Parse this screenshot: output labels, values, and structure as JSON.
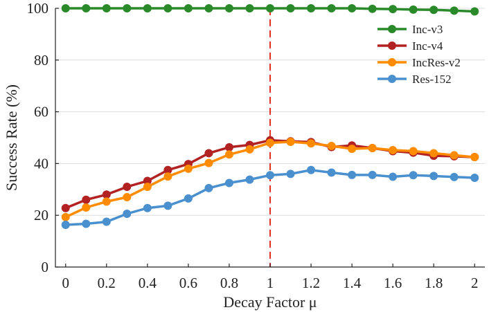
{
  "chart_data": {
    "type": "line",
    "title": "",
    "xlabel": "Decay Factor μ",
    "ylabel": "Success Rate (%)",
    "xlim": [
      -0.05,
      2.05
    ],
    "ylim": [
      0,
      100
    ],
    "xticks": [
      0,
      0.2,
      0.4,
      0.6,
      0.8,
      1,
      1.2,
      1.4,
      1.6,
      1.8,
      2
    ],
    "xtick_labels": [
      "0",
      "0.2",
      "0.4",
      "0.6",
      "0.8",
      "1",
      "1.2",
      "1.4",
      "1.6",
      "1.8",
      "2"
    ],
    "yticks": [
      0,
      20,
      40,
      60,
      80,
      100
    ],
    "ytick_labels": [
      "0",
      "20",
      "40",
      "60",
      "80",
      "100"
    ],
    "grid": "horizontal",
    "legend_position": "top-right",
    "reference_line": {
      "x": 1,
      "color": "#e8302a",
      "style": "dashed"
    },
    "x": [
      0,
      0.1,
      0.2,
      0.3,
      0.4,
      0.5,
      0.6,
      0.7,
      0.8,
      0.9,
      1.0,
      1.1,
      1.2,
      1.3,
      1.4,
      1.5,
      1.6,
      1.7,
      1.8,
      1.9,
      2.0
    ],
    "series": [
      {
        "name": "Inc-v3",
        "color": "#2a8a2a",
        "values": [
          100,
          100,
          100,
          100,
          100,
          100,
          100,
          100,
          100,
          100,
          100,
          100,
          100,
          100,
          100,
          99.8,
          99.7,
          99.5,
          99.4,
          99.1,
          98.8
        ]
      },
      {
        "name": "Inc-v4",
        "color": "#b22222",
        "values": [
          22.8,
          26.0,
          28.0,
          31.0,
          33.3,
          37.5,
          39.8,
          44.0,
          46.3,
          47.2,
          49.0,
          48.6,
          48.3,
          46.4,
          47.0,
          46.0,
          44.8,
          44.2,
          43.0,
          42.8,
          42.5
        ]
      },
      {
        "name": "IncRes-v2",
        "color": "#ff8c00",
        "values": [
          19.3,
          23.0,
          25.3,
          27.0,
          31.0,
          35.0,
          38.0,
          40.2,
          43.5,
          45.5,
          48.0,
          48.4,
          47.8,
          46.8,
          45.7,
          46.0,
          45.2,
          44.8,
          44.0,
          43.2,
          42.5
        ]
      },
      {
        "name": "Res-152",
        "color": "#4a90cf",
        "values": [
          16.3,
          16.7,
          17.5,
          20.6,
          22.8,
          23.7,
          26.5,
          30.5,
          32.5,
          33.8,
          35.5,
          36.0,
          37.5,
          36.5,
          35.6,
          35.6,
          34.9,
          35.5,
          35.2,
          34.8,
          34.5
        ]
      }
    ]
  }
}
